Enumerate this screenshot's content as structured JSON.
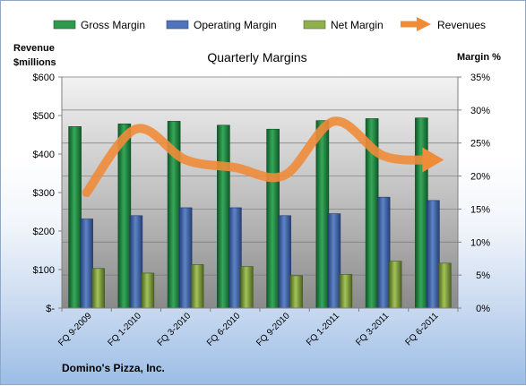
{
  "chart_data": {
    "type": "bar",
    "title": "Quarterly Margins",
    "company": "Domino's Pizza, Inc.",
    "y_left_label_line1": "Revenue",
    "y_left_label_line2": "$millions",
    "y_right_label": "Margin %",
    "categories": [
      "FQ 9-2009",
      "FQ 1-2010",
      "FQ 3-2010",
      "FQ 6-2010",
      "FQ 9-2010",
      "FQ 1-2011",
      "FQ 3-2011",
      "FQ 6-2011"
    ],
    "y_left_ticks": [
      "$-",
      "$100",
      "$200",
      "$300",
      "$400",
      "$500",
      "$600"
    ],
    "y_left_lim": [
      0,
      600
    ],
    "y_right_ticks": [
      "0%",
      "5%",
      "10%",
      "15%",
      "20%",
      "25%",
      "30%",
      "35%"
    ],
    "y_right_lim": [
      0,
      35
    ],
    "grid": true,
    "legend_position": "top",
    "bar_series": [
      {
        "name": "Gross Margin",
        "color": "#2e9a4e",
        "values": [
          27.5,
          27.9,
          28.3,
          27.7,
          27.1,
          28.4,
          28.7,
          28.8
        ]
      },
      {
        "name": "Operating Margin",
        "color": "#4f74b9",
        "values": [
          13.5,
          14.0,
          15.2,
          15.2,
          14.0,
          14.3,
          16.8,
          16.3
        ]
      },
      {
        "name": "Net Margin",
        "color": "#8fb04b",
        "values": [
          6.0,
          5.3,
          6.6,
          6.3,
          4.9,
          5.1,
          7.1,
          6.8
        ]
      }
    ],
    "line_series": {
      "name": "Revenues",
      "color": "#ef8c3a",
      "values": [
        300,
        465,
        385,
        365,
        345,
        485,
        395,
        385
      ]
    }
  }
}
